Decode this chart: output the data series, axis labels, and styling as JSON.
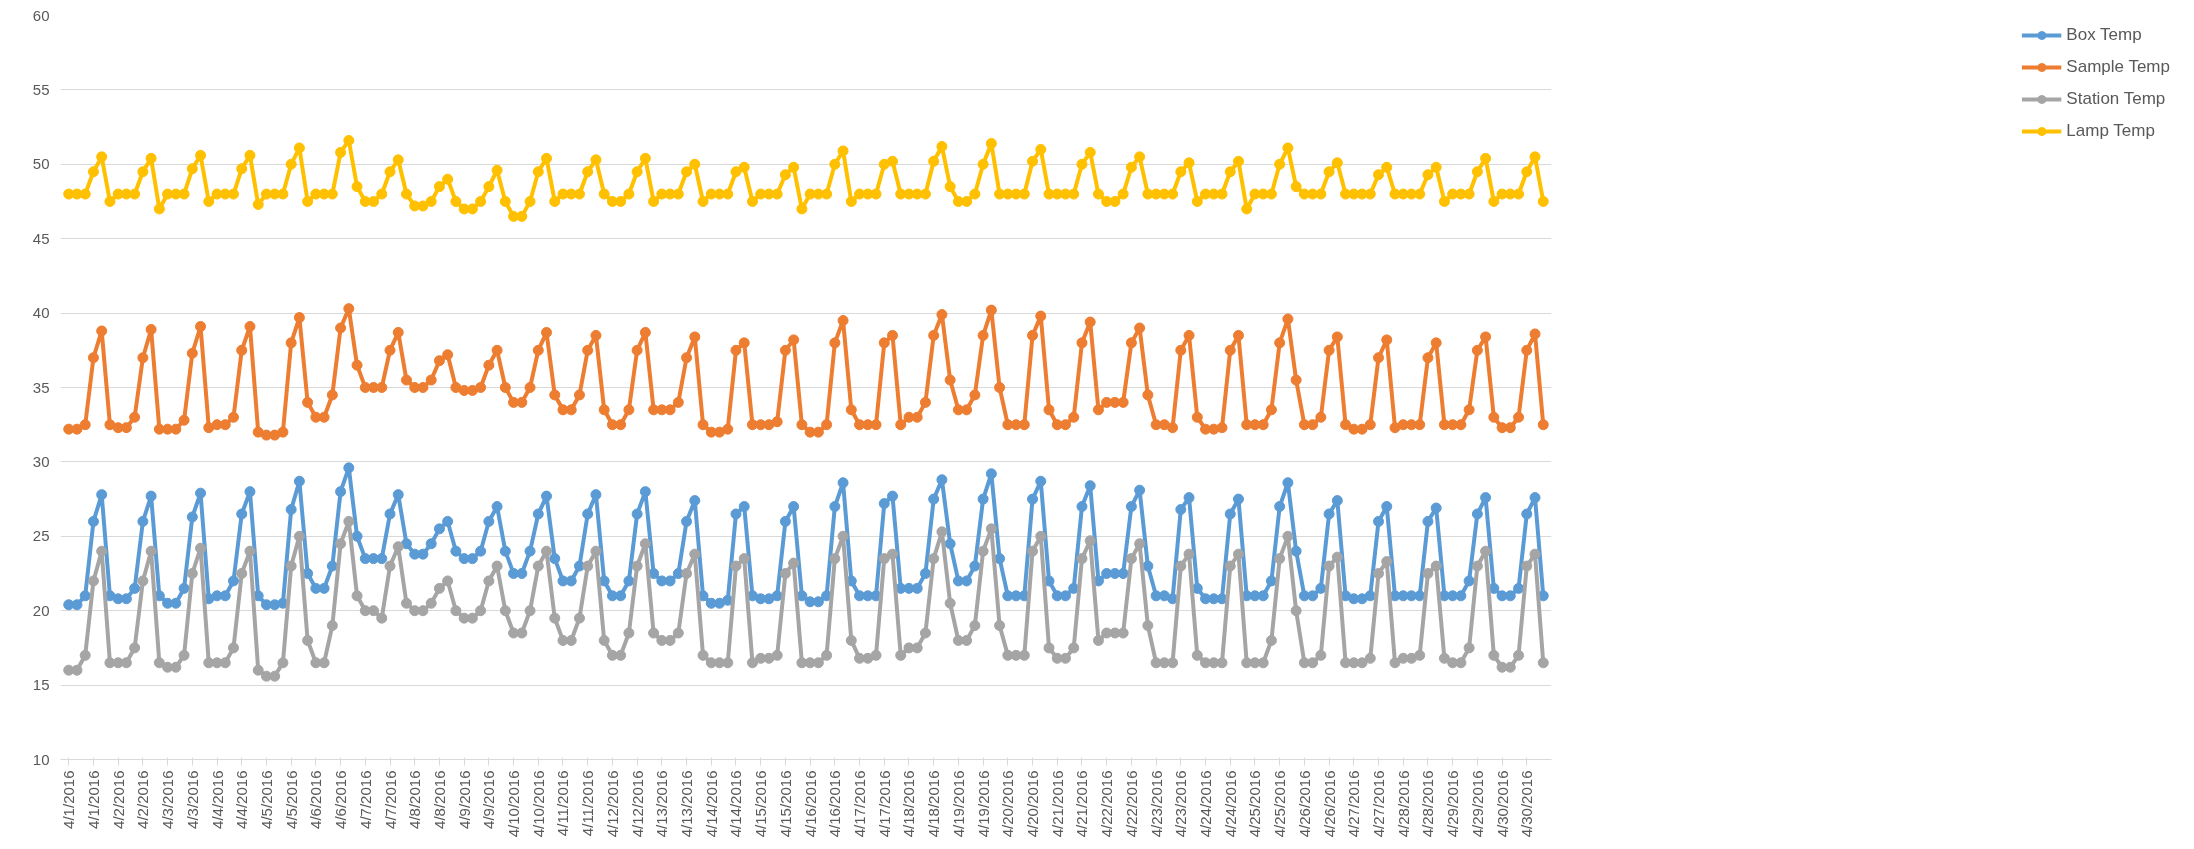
{
  "chart_data": {
    "type": "line",
    "marker": "circle",
    "line_style": "solid",
    "grid": "y",
    "legend": "right",
    "categories": [
      "4/1/2016",
      null,
      null,
      "4/1/2016",
      null,
      null,
      "4/2/2016",
      null,
      null,
      "4/2/2016",
      null,
      null,
      "4/3/2016",
      null,
      null,
      "4/3/2016",
      null,
      null,
      "4/4/2016",
      null,
      null,
      "4/4/2016",
      null,
      null,
      "4/5/2016",
      null,
      null,
      "4/5/2016",
      null,
      null,
      "4/6/2016",
      null,
      null,
      "4/6/2016",
      null,
      null,
      "4/7/2016",
      null,
      null,
      "4/7/2016",
      null,
      null,
      "4/8/2016",
      null,
      null,
      "4/8/2016",
      null,
      null,
      "4/9/2016",
      null,
      null,
      "4/9/2016",
      null,
      null,
      "4/10/2016",
      null,
      null,
      "4/10/2016",
      null,
      null,
      "4/11/2016",
      null,
      null,
      "4/11/2016",
      null,
      null,
      "4/12/2016",
      null,
      null,
      "4/12/2016",
      null,
      null,
      "4/13/2016",
      null,
      null,
      "4/13/2016",
      null,
      null,
      "4/14/2016",
      null,
      null,
      "4/14/2016",
      null,
      null,
      "4/15/2016",
      null,
      null,
      "4/15/2016",
      null,
      null,
      "4/16/2016",
      null,
      null,
      "4/16/2016",
      null,
      null,
      "4/17/2016",
      null,
      null,
      "4/17/2016",
      null,
      null,
      "4/18/2016",
      null,
      null,
      "4/18/2016",
      null,
      null,
      "4/19/2016",
      null,
      null,
      "4/19/2016",
      null,
      null,
      "4/20/2016",
      null,
      null,
      "4/20/2016",
      null,
      null,
      "4/21/2016",
      null,
      null,
      "4/21/2016",
      null,
      null,
      "4/22/2016",
      null,
      null,
      "4/22/2016",
      null,
      null,
      "4/23/2016",
      null,
      null,
      "4/23/2016",
      null,
      null,
      "4/24/2016",
      null,
      null,
      "4/24/2016",
      null,
      null,
      "4/25/2016",
      null,
      null,
      "4/25/2016",
      null,
      null,
      "4/26/2016",
      null,
      null,
      "4/26/2016",
      null,
      null,
      "4/27/2016",
      null,
      null,
      "4/27/2016",
      null,
      null,
      "4/28/2016",
      null,
      null,
      "4/28/2016",
      null,
      null,
      "4/29/2016",
      null,
      null,
      "4/29/2016",
      null,
      null,
      "4/30/2016",
      null,
      null,
      "4/30/2016",
      null,
      null
    ],
    "ylim": [
      10,
      60
    ],
    "yticks": [
      10,
      15,
      20,
      25,
      30,
      35,
      40,
      45,
      50,
      55,
      60
    ],
    "series": [
      {
        "name": "Box Temp",
        "color": "#5b9bd5",
        "values": [
          20.4,
          20.4,
          21,
          26,
          27.8,
          21,
          20.8,
          20.8,
          21.5,
          26,
          27.7,
          21,
          20.5,
          20.5,
          21.5,
          26.3,
          27.9,
          20.8,
          21,
          21,
          22,
          26.5,
          28,
          21,
          20.4,
          20.4,
          20.5,
          26.8,
          28.7,
          22.5,
          21.5,
          21.5,
          23,
          28,
          29.6,
          25,
          23.5,
          23.5,
          23.5,
          26.5,
          27.8,
          24.5,
          23.8,
          23.8,
          24.5,
          25.5,
          26,
          24,
          23.5,
          23.5,
          24,
          26,
          27,
          24,
          22.5,
          22.5,
          24,
          26.5,
          27.7,
          23.5,
          22,
          22,
          23,
          26.5,
          27.8,
          22,
          21,
          21,
          22,
          26.5,
          28,
          22.5,
          22,
          22,
          22.5,
          26,
          27.4,
          21,
          20.5,
          20.5,
          20.7,
          26.5,
          27,
          21,
          20.8,
          20.8,
          21,
          26,
          27,
          21,
          20.6,
          20.6,
          21,
          27,
          28.6,
          22,
          21,
          21,
          21,
          27.2,
          27.7,
          21.5,
          21.5,
          21.5,
          22.5,
          27.5,
          28.8,
          24.5,
          22,
          22,
          23,
          27.5,
          29.2,
          23.5,
          21,
          21,
          21,
          27.5,
          28.7,
          22,
          21,
          21,
          21.5,
          27,
          28.4,
          22,
          22.5,
          22.5,
          22.5,
          27,
          28.1,
          23,
          21,
          21,
          20.8,
          26.8,
          27.6,
          21.5,
          20.8,
          20.8,
          20.8,
          26.5,
          27.5,
          21,
          21,
          21,
          22,
          27,
          28.6,
          24,
          21,
          21,
          21.5,
          26.5,
          27.4,
          21,
          20.8,
          20.8,
          21,
          26,
          27,
          21,
          21,
          21,
          21,
          26,
          26.9,
          21,
          21,
          21,
          22,
          26.5,
          27.6,
          21.5,
          21,
          21,
          21.5,
          26.5,
          27.6,
          21
        ]
      },
      {
        "name": "Sample Temp",
        "color": "#ed7d31",
        "values": [
          32.2,
          32.2,
          32.5,
          37,
          38.8,
          32.5,
          32.3,
          32.3,
          33,
          37,
          38.9,
          32.2,
          32.2,
          32.2,
          32.8,
          37.3,
          39.1,
          32.3,
          32.5,
          32.5,
          33,
          37.5,
          39.1,
          32,
          31.8,
          31.8,
          32,
          38,
          39.7,
          34,
          33,
          33,
          34.5,
          39,
          40.3,
          36.5,
          35,
          35,
          35,
          37.5,
          38.7,
          35.5,
          35,
          35,
          35.5,
          36.8,
          37.2,
          35,
          34.8,
          34.8,
          35,
          36.5,
          37.5,
          35,
          34,
          34,
          35,
          37.5,
          38.7,
          34.5,
          33.5,
          33.5,
          34.5,
          37.5,
          38.5,
          33.5,
          32.5,
          32.5,
          33.5,
          37.5,
          38.7,
          33.5,
          33.5,
          33.5,
          34,
          37,
          38.4,
          32.5,
          32,
          32,
          32.2,
          37.5,
          38,
          32.5,
          32.5,
          32.5,
          32.7,
          37.5,
          38.2,
          32.5,
          32,
          32,
          32.5,
          38,
          39.5,
          33.5,
          32.5,
          32.5,
          32.5,
          38,
          38.5,
          32.5,
          33,
          33,
          34,
          38.5,
          39.9,
          35.5,
          33.5,
          33.5,
          34.5,
          38.5,
          40.2,
          35,
          32.5,
          32.5,
          32.5,
          38.5,
          39.8,
          33.5,
          32.5,
          32.5,
          33,
          38,
          39.4,
          33.5,
          34,
          34,
          34,
          38,
          39,
          34.5,
          32.5,
          32.5,
          32.3,
          37.5,
          38.5,
          33,
          32.2,
          32.2,
          32.3,
          37.5,
          38.5,
          32.5,
          32.5,
          32.5,
          33.5,
          38,
          39.6,
          35.5,
          32.5,
          32.5,
          33,
          37.5,
          38.4,
          32.5,
          32.2,
          32.2,
          32.5,
          37,
          38.2,
          32.3,
          32.5,
          32.5,
          32.5,
          37,
          38,
          32.5,
          32.5,
          32.5,
          33.5,
          37.5,
          38.4,
          33,
          32.3,
          32.3,
          33,
          37.5,
          38.6,
          32.5
        ]
      },
      {
        "name": "Station Temp",
        "color": "#a5a5a5",
        "values": [
          16,
          16,
          17,
          22,
          24,
          16.5,
          16.5,
          16.5,
          17.5,
          22,
          24,
          16.5,
          16.2,
          16.2,
          17,
          22.5,
          24.2,
          16.5,
          16.5,
          16.5,
          17.5,
          22.5,
          24,
          16,
          15.6,
          15.6,
          16.5,
          23,
          25,
          18,
          16.5,
          16.5,
          19,
          24.5,
          26,
          21,
          20,
          20,
          19.5,
          23,
          24.3,
          20.5,
          20,
          20,
          20.5,
          21.5,
          22,
          20,
          19.5,
          19.5,
          20,
          22,
          23,
          20,
          18.5,
          18.5,
          20,
          23,
          24,
          19.5,
          18,
          18,
          19.5,
          23,
          24,
          18,
          17,
          17,
          18.5,
          23,
          24.5,
          18.5,
          18,
          18,
          18.5,
          22.5,
          23.8,
          17,
          16.5,
          16.5,
          16.5,
          23,
          23.5,
          16.5,
          16.8,
          16.8,
          17,
          22.5,
          23.2,
          16.5,
          16.5,
          16.5,
          17,
          23.5,
          25,
          18,
          16.8,
          16.8,
          17,
          23.5,
          23.8,
          17,
          17.5,
          17.5,
          18.5,
          23.5,
          25.3,
          20.5,
          18,
          18,
          19,
          24,
          25.5,
          19,
          17,
          17,
          17,
          24,
          25,
          17.5,
          16.8,
          16.8,
          17.5,
          23.5,
          24.7,
          18,
          18.5,
          18.5,
          18.5,
          23.5,
          24.5,
          19,
          16.5,
          16.5,
          16.5,
          23,
          23.8,
          17,
          16.5,
          16.5,
          16.5,
          23,
          23.8,
          16.5,
          16.5,
          16.5,
          18,
          23.5,
          25,
          20,
          16.5,
          16.5,
          17,
          23,
          23.6,
          16.5,
          16.5,
          16.5,
          16.8,
          22.5,
          23.3,
          16.5,
          16.8,
          16.8,
          17,
          22.5,
          23,
          16.8,
          16.5,
          16.5,
          17.5,
          23,
          24,
          17,
          16.2,
          16.2,
          17,
          23,
          23.8,
          16.5
        ]
      },
      {
        "name": "Lamp Temp",
        "color": "#ffc000",
        "values": [
          48,
          48,
          48,
          49.5,
          50.5,
          47.5,
          48,
          48,
          48,
          49.5,
          50.4,
          47,
          48,
          48,
          48,
          49.7,
          50.6,
          47.5,
          48,
          48,
          48,
          49.7,
          50.6,
          47.3,
          48,
          48,
          48,
          50,
          51.1,
          47.5,
          48,
          48,
          48,
          50.8,
          51.6,
          48.5,
          47.5,
          47.5,
          48,
          49.5,
          50.3,
          48,
          47.2,
          47.2,
          47.5,
          48.5,
          49,
          47.5,
          47,
          47,
          47.5,
          48.5,
          49.6,
          47.5,
          46.5,
          46.5,
          47.5,
          49.5,
          50.4,
          47.5,
          48,
          48,
          48,
          49.5,
          50.3,
          48,
          47.5,
          47.5,
          48,
          49.5,
          50.4,
          47.5,
          48,
          48,
          48,
          49.5,
          50,
          47.5,
          48,
          48,
          48,
          49.5,
          49.8,
          47.5,
          48,
          48,
          48,
          49.3,
          49.8,
          47,
          48,
          48,
          48,
          50,
          50.9,
          47.5,
          48,
          48,
          48,
          50,
          50.2,
          48,
          48,
          48,
          48,
          50.2,
          51.2,
          48.5,
          47.5,
          47.5,
          48,
          50,
          51.4,
          48,
          48,
          48,
          48,
          50.2,
          51,
          48,
          48,
          48,
          48,
          50,
          50.8,
          48,
          47.5,
          47.5,
          48,
          49.8,
          50.5,
          48,
          48,
          48,
          48,
          49.5,
          50.1,
          47.5,
          48,
          48,
          48,
          49.5,
          50.2,
          47,
          48,
          48,
          48,
          50,
          51.1,
          48.5,
          48,
          48,
          48,
          49.5,
          50.1,
          48,
          48,
          48,
          48,
          49.3,
          49.8,
          48,
          48,
          48,
          48,
          49.3,
          49.8,
          47.5,
          48,
          48,
          48,
          49.5,
          50.4,
          47.5,
          48,
          48,
          48,
          49.5,
          50.5,
          47.5
        ]
      }
    ]
  }
}
